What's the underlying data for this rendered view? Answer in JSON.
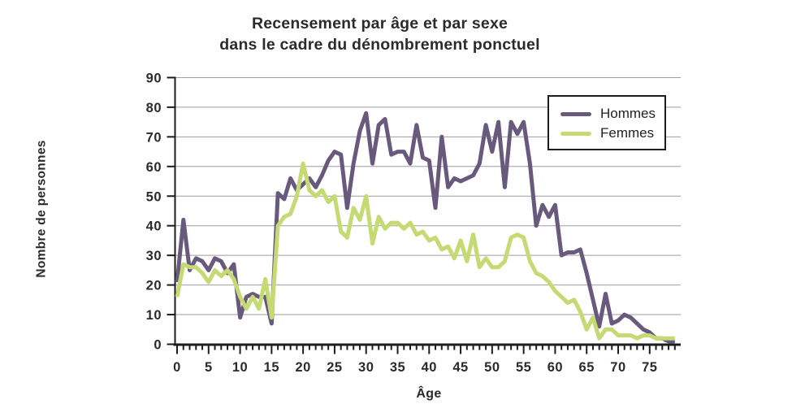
{
  "title": {
    "line1": "Recensement par âge et par sexe",
    "line2": "dans le cadre du dénombrement ponctuel"
  },
  "colors": {
    "hommes": "#695a7d",
    "femmes": "#c5da72",
    "axis": "#1d1d1d",
    "grid": "#9e9e9e",
    "text": "#2b2b2b"
  },
  "legend": {
    "items": [
      {
        "label": "Hommes",
        "color": "#695a7d"
      },
      {
        "label": "Femmes",
        "color": "#c5da72"
      }
    ]
  },
  "chart_data": {
    "type": "line",
    "title": "Recensement par âge et par sexe dans le cadre du dénombrement ponctuel",
    "xlabel": "Âge",
    "ylabel": "Nombre de personnes",
    "x_start": 0,
    "x_end": 79,
    "x_tick_labels": [
      0,
      5,
      10,
      15,
      20,
      25,
      30,
      35,
      40,
      45,
      50,
      55,
      60,
      65,
      70,
      75
    ],
    "y_ticks": [
      0,
      10,
      20,
      30,
      40,
      50,
      60,
      70,
      80,
      90
    ],
    "ylim": [
      0,
      90
    ],
    "grid": true,
    "legend_position": "top-right",
    "series": [
      {
        "name": "Hommes",
        "color": "#695a7d",
        "values": [
          21,
          42,
          25,
          29,
          28,
          25,
          29,
          28,
          24,
          27,
          9,
          16,
          17,
          16,
          16,
          7,
          51,
          49,
          56,
          52,
          54,
          56,
          53,
          57,
          62,
          65,
          64,
          46,
          61,
          72,
          78,
          61,
          74,
          76,
          64,
          65,
          65,
          61,
          74,
          63,
          62,
          46,
          70,
          53,
          56,
          55,
          56,
          57,
          61,
          74,
          65,
          75,
          53,
          75,
          71,
          75,
          61,
          40,
          47,
          43,
          47,
          30,
          31,
          31,
          32,
          24,
          15,
          6,
          17,
          7,
          8,
          10,
          9,
          7,
          5,
          4,
          2,
          2,
          1,
          1
        ]
      },
      {
        "name": "Femmes",
        "color": "#c5da72",
        "values": [
          16,
          27,
          26,
          26,
          24,
          21,
          25,
          23,
          25,
          22,
          16,
          12,
          16,
          12,
          22,
          9,
          40,
          43,
          44,
          50,
          61,
          52,
          50,
          52,
          48,
          50,
          38,
          36,
          46,
          42,
          50,
          34,
          43,
          39,
          41,
          41,
          39,
          41,
          37,
          38,
          35,
          36,
          32,
          33,
          29,
          35,
          28,
          37,
          26,
          29,
          26,
          26,
          28,
          36,
          37,
          36,
          28,
          24,
          23,
          21,
          18,
          16,
          14,
          15,
          11,
          5,
          9,
          2,
          5,
          5,
          3,
          3,
          3,
          2,
          3,
          3,
          2,
          2,
          2,
          2
        ]
      }
    ]
  }
}
